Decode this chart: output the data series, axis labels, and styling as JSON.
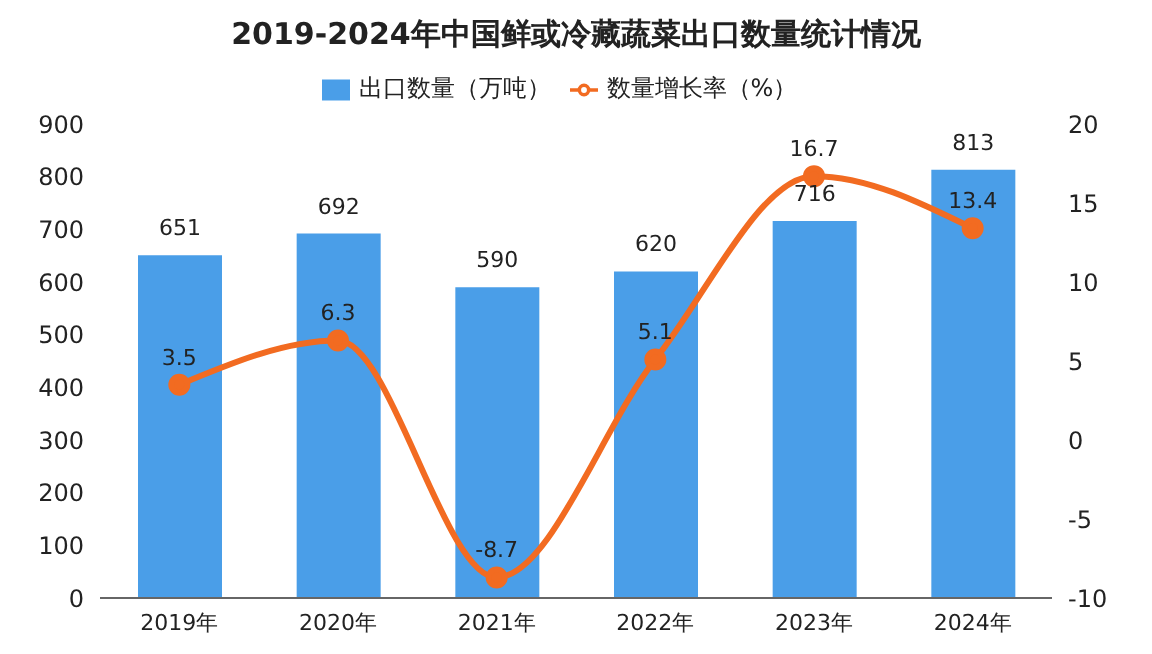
{
  "chart_data": {
    "type": "bar",
    "title": "2019-2024年中国鲜或冷藏蔬菜出口数量统计情况",
    "categories": [
      "2019年",
      "2020年",
      "2021年",
      "2022年",
      "2023年",
      "2024年"
    ],
    "series": [
      {
        "name": "出口数量（万吨）",
        "color": "#4a9ee8",
        "values": [
          651,
          692,
          590,
          620,
          716,
          813
        ]
      },
      {
        "name": "数量增长率（%）",
        "type": "line",
        "axis": "y2",
        "color": "#f26b21",
        "values": [
          3.5,
          6.3,
          -8.7,
          5.1,
          16.7,
          13.4
        ],
        "marker": "circle"
      }
    ],
    "ylim": [
      0,
      900
    ],
    "yticks": [
      0,
      100,
      200,
      300,
      400,
      500,
      600,
      700,
      800,
      900
    ],
    "y2lim": [
      -10,
      20
    ],
    "y2ticks": [
      -10,
      -5,
      0,
      5,
      10,
      15,
      20
    ],
    "data_labels": true,
    "legend": "top",
    "grid": false
  }
}
